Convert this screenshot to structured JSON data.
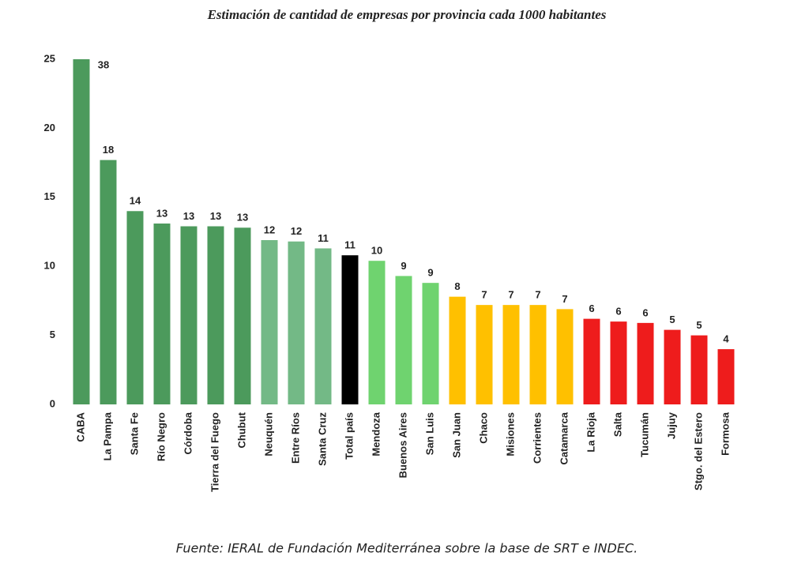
{
  "chart_data": {
    "type": "bar",
    "title": "Estimación de cantidad de empresas por provincia cada 1000 habitantes",
    "source": "Fuente: IERAL de Fundación Mediterránea sobre la base de SRT e INDEC.",
    "categories": [
      "CABA",
      "La Pampa",
      "Santa Fe",
      "Río Negro",
      "Córdoba",
      "Tierra del Fuego",
      "Chubut",
      "Neuquén",
      "Entre Ríos",
      "Santa Cruz",
      "Total país",
      "Mendoza",
      "Buenos Aires",
      "San Luis",
      "San Juan",
      "Chaco",
      "Misiones",
      "Corrientes",
      "Catamarca",
      "La Rioja",
      "Salta",
      "Tucumán",
      "Jujuy",
      "Stgo. del Estero",
      "Formosa"
    ],
    "values": [
      38,
      17.7,
      14.0,
      13.1,
      12.9,
      12.9,
      12.8,
      11.9,
      11.8,
      11.3,
      10.8,
      10.4,
      9.3,
      8.8,
      7.8,
      7.2,
      7.2,
      7.2,
      6.9,
      6.2,
      6.0,
      5.9,
      5.4,
      5.0,
      4.0
    ],
    "value_labels": [
      "38",
      "18",
      "14",
      "13",
      "13",
      "13",
      "13",
      "12",
      "12",
      "11",
      "11",
      "10",
      "9",
      "9",
      "8",
      "7",
      "7",
      "7",
      "7",
      "6",
      "6",
      "6",
      "5",
      "5",
      "4"
    ],
    "colors": [
      "#4c9a5c",
      "#4c9a5c",
      "#4c9a5c",
      "#4c9a5c",
      "#4c9a5c",
      "#4c9a5c",
      "#4c9a5c",
      "#73b986",
      "#73b986",
      "#73b986",
      "#000000",
      "#6fd36f",
      "#6fd36f",
      "#6fd36f",
      "#ffc000",
      "#ffc000",
      "#ffc000",
      "#ffc000",
      "#ffc000",
      "#ee1c1c",
      "#ee1c1c",
      "#ee1c1c",
      "#ee1c1c",
      "#ee1c1c",
      "#ee1c1c"
    ],
    "ylim": [
      0,
      25
    ],
    "yticks": [
      0,
      5,
      10,
      15,
      20,
      25
    ],
    "grid": false
  }
}
